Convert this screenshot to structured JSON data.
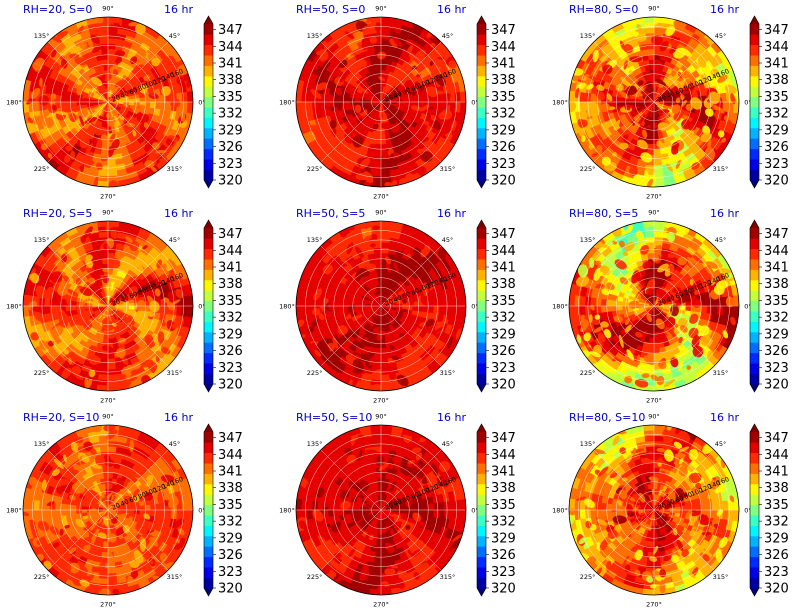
{
  "figure": {
    "panels_layout": {
      "rows": 3,
      "cols": 3
    },
    "time_label": "16 hr",
    "angle_ticks": [
      "0°",
      "45°",
      "90°",
      "135°",
      "180°",
      "225°",
      "270°",
      "315°"
    ],
    "radial_ticks": [
      "20",
      "40",
      "60",
      "80",
      "100",
      "120",
      "140",
      "160"
    ],
    "radial_label_angle_deg": 22.5,
    "colorbar": {
      "ticks": [
        "320",
        "323",
        "326",
        "329",
        "332",
        "335",
        "338",
        "341",
        "344",
        "347"
      ],
      "vmin": 320,
      "vmax": 348,
      "colormap": "jet",
      "extend": "both"
    },
    "colors": {
      "title": "#0000cc",
      "grid": "#ffffff",
      "axes_edge": "#000000"
    }
  },
  "chart_data": [
    {
      "type": "heatmap",
      "projection": "polar",
      "title": "RH=20, S=0",
      "time": "16 hr",
      "mean_value": 342.5,
      "spread": 1.6,
      "radial_trend": 0.3
    },
    {
      "type": "heatmap",
      "projection": "polar",
      "title": "RH=50, S=0",
      "time": "16 hr",
      "mean_value": 345.2,
      "spread": 1.2,
      "radial_trend": -1.0
    },
    {
      "type": "heatmap",
      "projection": "polar",
      "title": "RH=80, S=0",
      "time": "16 hr",
      "mean_value": 342.6,
      "spread": 2.4,
      "radial_trend": -3.0
    },
    {
      "type": "heatmap",
      "projection": "polar",
      "title": "RH=20, S=5",
      "time": "16 hr",
      "mean_value": 342.5,
      "spread": 1.6,
      "radial_trend": 0.3
    },
    {
      "type": "heatmap",
      "projection": "polar",
      "title": "RH=50, S=5",
      "time": "16 hr",
      "mean_value": 345.4,
      "spread": 1.1,
      "radial_trend": -0.8
    },
    {
      "type": "heatmap",
      "projection": "polar",
      "title": "RH=80, S=5",
      "time": "16 hr",
      "mean_value": 342.3,
      "spread": 2.6,
      "radial_trend": -3.2
    },
    {
      "type": "heatmap",
      "projection": "polar",
      "title": "RH=20, S=10",
      "time": "16 hr",
      "mean_value": 342.5,
      "spread": 1.6,
      "radial_trend": 0.2
    },
    {
      "type": "heatmap",
      "projection": "polar",
      "title": "RH=50, S=10",
      "time": "16 hr",
      "mean_value": 345.6,
      "spread": 1.0,
      "radial_trend": -0.8
    },
    {
      "type": "heatmap",
      "projection": "polar",
      "title": "RH=80, S=10",
      "time": "16 hr",
      "mean_value": 342.4,
      "spread": 2.5,
      "radial_trend": -3.0
    }
  ]
}
